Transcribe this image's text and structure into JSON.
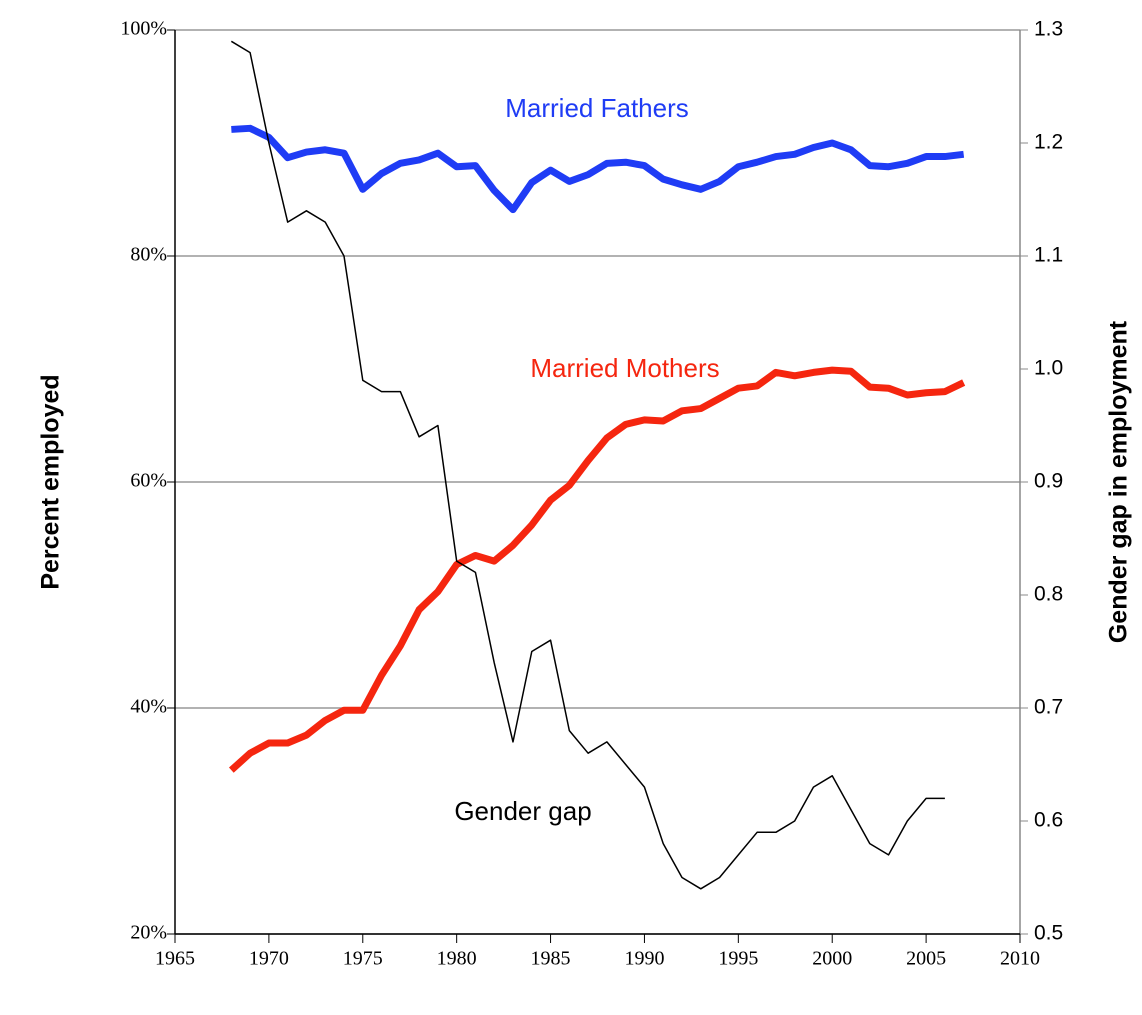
{
  "chart_data": {
    "type": "line",
    "y_label": "Percent employed",
    "y2_label": "Gender gap in employment",
    "x": [
      1968,
      1969,
      1970,
      1971,
      1972,
      1973,
      1974,
      1975,
      1976,
      1977,
      1978,
      1979,
      1980,
      1981,
      1982,
      1983,
      1984,
      1985,
      1986,
      1987,
      1988,
      1989,
      1990,
      1991,
      1992,
      1993,
      1994,
      1995,
      1996,
      1997,
      1998,
      1999,
      2000,
      2001,
      2002,
      2003,
      2004,
      2005,
      2006,
      2007
    ],
    "series": [
      {
        "name": "Married Fathers",
        "color": "#1f3cf5",
        "width": 7,
        "values": [
          91.2,
          91.3,
          90.5,
          88.7,
          89.2,
          89.4,
          89.1,
          85.9,
          87.3,
          88.2,
          88.5,
          89.1,
          87.9,
          88.0,
          85.8,
          84.1,
          86.5,
          87.6,
          86.6,
          87.2,
          88.2,
          88.3,
          88.0,
          86.8,
          86.3,
          85.9,
          86.6,
          87.9,
          88.3,
          88.8,
          89.0,
          89.6,
          90.0,
          89.4,
          88.0,
          87.9,
          88.2,
          88.8,
          88.8,
          89.0
        ]
      },
      {
        "name": "Married Mothers",
        "color": "#f5260f",
        "width": 7,
        "values": [
          34.5,
          36.0,
          36.9,
          36.9,
          37.6,
          38.9,
          39.8,
          39.8,
          42.9,
          45.5,
          48.7,
          50.3,
          52.7,
          53.5,
          53.0,
          54.4,
          56.2,
          58.4,
          59.7,
          61.9,
          63.9,
          65.1,
          65.5,
          65.4,
          66.3,
          66.5,
          67.4,
          68.3,
          68.5,
          69.7,
          69.4,
          69.7,
          69.9,
          69.8,
          68.4,
          68.3,
          67.7,
          67.9,
          68.0,
          68.8
        ]
      },
      {
        "name": "Gender gap",
        "color": "#000000",
        "width": 1.5,
        "axis": "y2",
        "values": [
          1.29,
          1.28,
          1.2,
          1.13,
          1.14,
          1.13,
          1.1,
          0.99,
          0.98,
          0.98,
          0.94,
          0.95,
          0.83,
          0.82,
          0.74,
          0.67,
          0.75,
          0.76,
          0.68,
          0.66,
          0.67,
          0.65,
          0.63,
          0.58,
          0.55,
          0.54,
          0.55,
          0.57,
          0.59,
          0.59,
          0.6,
          0.63,
          0.64,
          0.61,
          0.58,
          0.57,
          0.6,
          0.62,
          0.62,
          null
        ]
      }
    ],
    "xlim": [
      1965,
      2010
    ],
    "xticks": [
      1965,
      1970,
      1975,
      1980,
      1985,
      1990,
      1995,
      2000,
      2005,
      2010
    ],
    "ylim": [
      20,
      100
    ],
    "yticks": [
      {
        "value": 20,
        "label": "20%"
      },
      {
        "value": 40,
        "label": "40%"
      },
      {
        "value": 60,
        "label": "60%"
      },
      {
        "value": 80,
        "label": "80%"
      },
      {
        "value": 100,
        "label": "100%"
      }
    ],
    "y2lim": [
      0.5,
      1.3
    ],
    "y2ticks": [
      0.5,
      0.6,
      0.7,
      0.8,
      0.9,
      {
        "value": 1,
        "label": "1.0"
      },
      1.1,
      1.2,
      1.3
    ],
    "grid": true
  }
}
